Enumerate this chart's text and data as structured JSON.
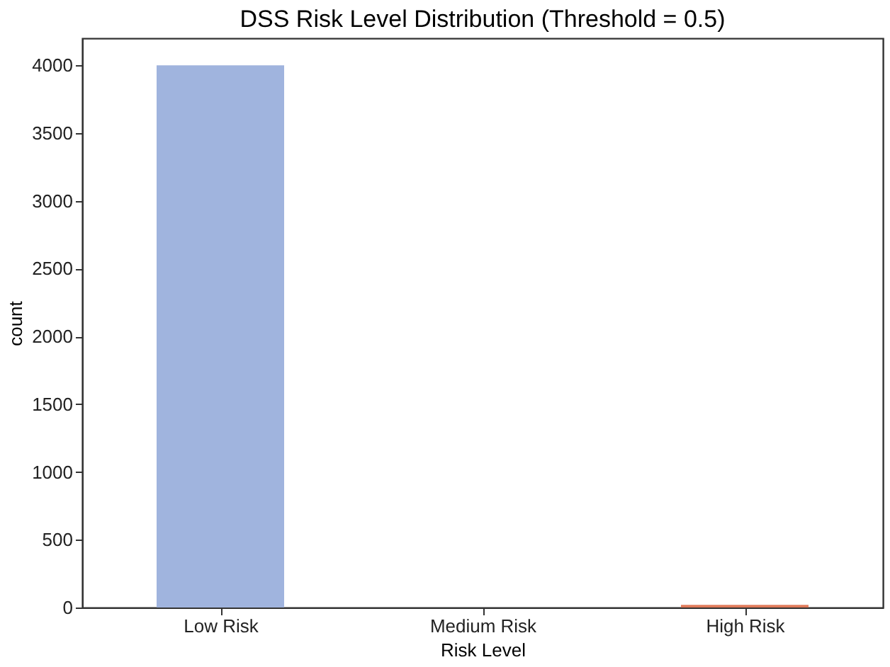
{
  "chart_data": {
    "type": "bar",
    "title": "DSS Risk Level Distribution (Threshold = 0.5)",
    "xlabel": "Risk Level",
    "ylabel": "count",
    "categories": [
      "Low Risk",
      "Medium Risk",
      "High Risk"
    ],
    "values": [
      4000,
      0,
      20
    ],
    "colors": [
      "#a0b4de",
      "#dcdcdc",
      "#e07b5b"
    ],
    "ylim": [
      0,
      4200
    ],
    "yticks": [
      0,
      500,
      1000,
      1500,
      2000,
      2500,
      3000,
      3500,
      4000
    ],
    "grid": false
  }
}
